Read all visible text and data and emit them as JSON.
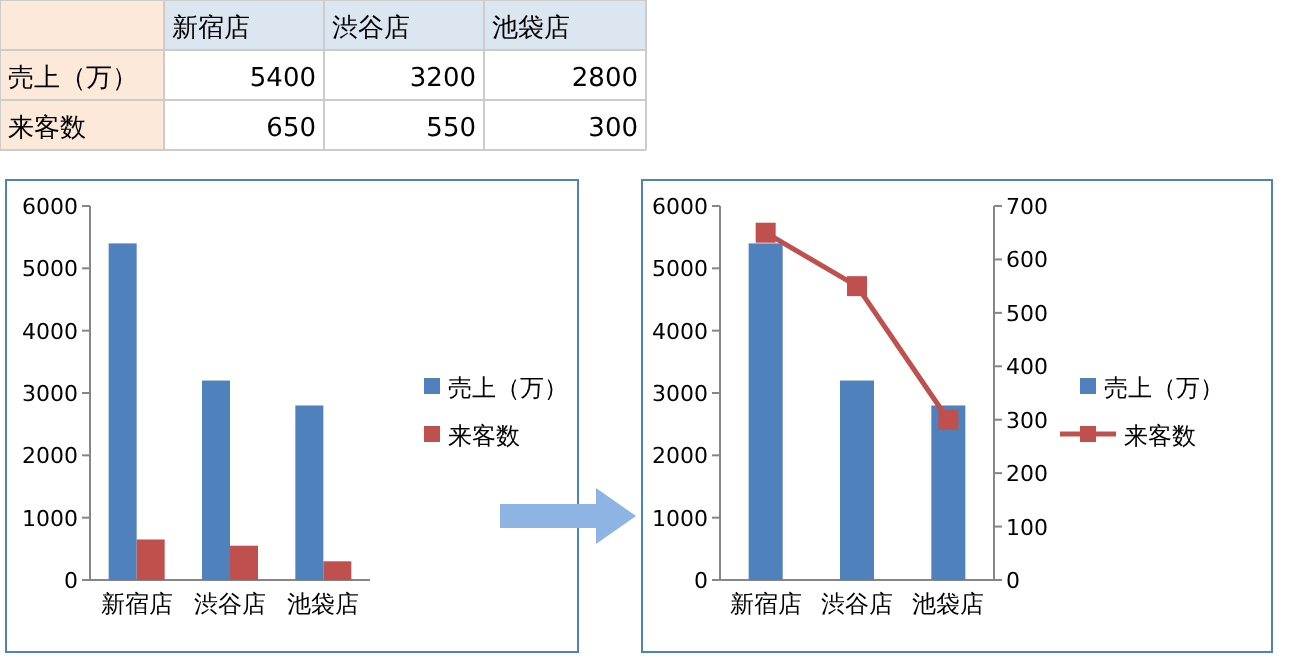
{
  "chart_data": [
    {
      "type": "other",
      "categories": [
        "新宿店",
        "渋谷店",
        "池袋店"
      ],
      "series": [
        {
          "name": "売上（万）",
          "values": [
            5400,
            3200,
            2800
          ]
        },
        {
          "name": "来客数",
          "values": [
            650,
            550,
            300
          ]
        }
      ],
      "data_labels": true
    },
    {
      "type": "bar",
      "categories": [
        "新宿店",
        "渋谷店",
        "池袋店"
      ],
      "series": [
        {
          "name": "売上（万）",
          "color": "#4f81bd",
          "values": [
            5400,
            3200,
            2800
          ]
        },
        {
          "name": "来客数",
          "color": "#c0504d",
          "values": [
            650,
            550,
            300
          ]
        }
      ],
      "ylim": [
        0,
        6000
      ],
      "yticks": [
        0,
        1000,
        2000,
        3000,
        4000,
        5000,
        6000
      ],
      "legend": "right",
      "grid": false
    },
    {
      "type": "bar",
      "categories": [
        "新宿店",
        "渋谷店",
        "池袋店"
      ],
      "series": [
        {
          "name": "売上（万）",
          "color": "#4f81bd",
          "values": [
            5400,
            3200,
            2800
          ]
        },
        {
          "name": "来客数",
          "color": "#c0504d",
          "values": [
            650,
            550,
            300
          ],
          "type": "line",
          "axis": "y2",
          "marker": "square"
        }
      ],
      "ylim": [
        0,
        6000
      ],
      "yticks": [
        0,
        1000,
        2000,
        3000,
        4000,
        5000,
        6000
      ],
      "y2lim": [
        0,
        700
      ],
      "y2ticks": [
        0,
        100,
        200,
        300,
        400,
        500,
        600,
        700
      ],
      "legend": "right",
      "grid": false
    }
  ]
}
